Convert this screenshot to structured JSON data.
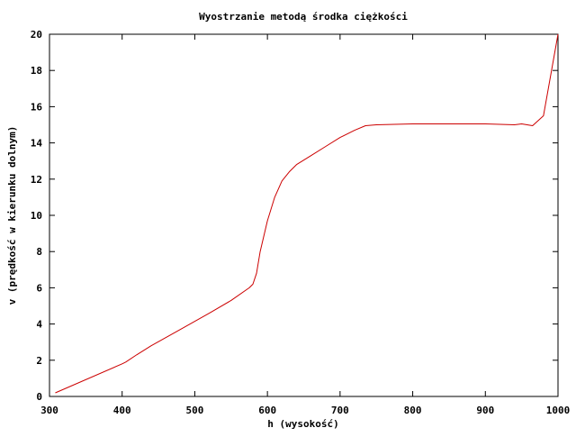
{
  "chart_data": {
    "type": "line",
    "title": "Wyostrzanie metodą środka ciężkości",
    "xlabel": "h (wysokość)",
    "ylabel": "v (prędkość w kierunku dolnym)",
    "xlim": [
      300,
      1000
    ],
    "ylim": [
      0,
      20
    ],
    "xticks": [
      300,
      400,
      500,
      600,
      700,
      800,
      900,
      1000
    ],
    "yticks": [
      0,
      2,
      4,
      6,
      8,
      10,
      12,
      14,
      16,
      18,
      20
    ],
    "grid": false,
    "legend": "none",
    "series": [
      {
        "color": "#cc0000",
        "points": [
          [
            308,
            0.2
          ],
          [
            400,
            1.8
          ],
          [
            405,
            1.9
          ],
          [
            420,
            2.3
          ],
          [
            440,
            2.8
          ],
          [
            480,
            3.7
          ],
          [
            520,
            4.6
          ],
          [
            550,
            5.3
          ],
          [
            575,
            6.0
          ],
          [
            580,
            6.2
          ],
          [
            585,
            6.8
          ],
          [
            590,
            8.0
          ],
          [
            600,
            9.7
          ],
          [
            610,
            11.0
          ],
          [
            620,
            11.9
          ],
          [
            630,
            12.4
          ],
          [
            640,
            12.8
          ],
          [
            660,
            13.3
          ],
          [
            680,
            13.8
          ],
          [
            700,
            14.3
          ],
          [
            720,
            14.7
          ],
          [
            735,
            14.95
          ],
          [
            750,
            15.0
          ],
          [
            800,
            15.05
          ],
          [
            850,
            15.05
          ],
          [
            900,
            15.05
          ],
          [
            940,
            15.0
          ],
          [
            950,
            15.05
          ],
          [
            965,
            14.95
          ],
          [
            980,
            15.5
          ],
          [
            1000,
            20.0
          ]
        ]
      }
    ]
  }
}
